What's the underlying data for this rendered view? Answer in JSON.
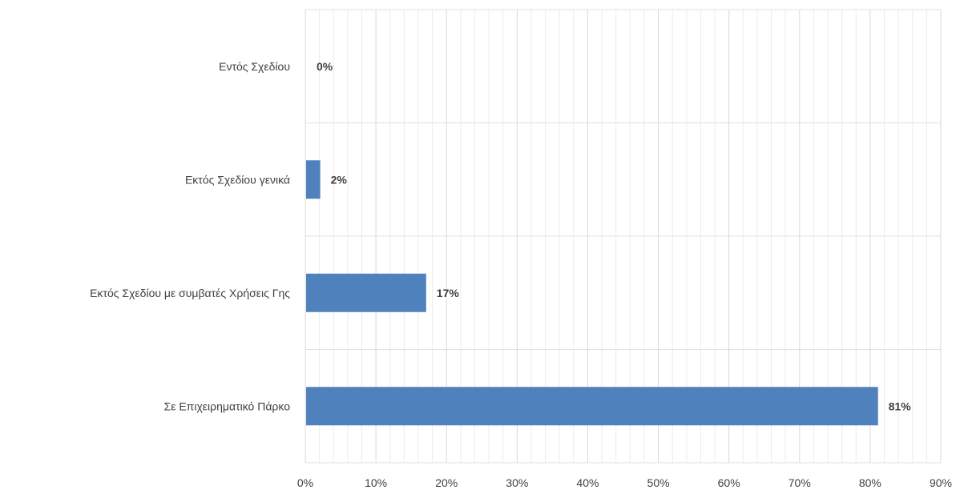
{
  "chart_data": {
    "type": "bar",
    "orientation": "horizontal",
    "categories": [
      "Εντός Σχεδίου",
      "Εκτός Σχεδίου γενικά",
      "Εκτός Σχεδίου με συμβατές Χρήσεις Γης",
      "Σε Επιχειρηματικό Πάρκο"
    ],
    "values": [
      0,
      2,
      17,
      81
    ],
    "value_labels": [
      "0%",
      "2%",
      "17%",
      "81%"
    ],
    "x_ticks": [
      "0%",
      "10%",
      "20%",
      "30%",
      "40%",
      "50%",
      "60%",
      "70%",
      "80%",
      "90%"
    ],
    "xlim": [
      0,
      90
    ],
    "grid": true,
    "legend": "none",
    "bar_color": "#4f81bd",
    "title": "",
    "xlabel": "",
    "ylabel": ""
  }
}
